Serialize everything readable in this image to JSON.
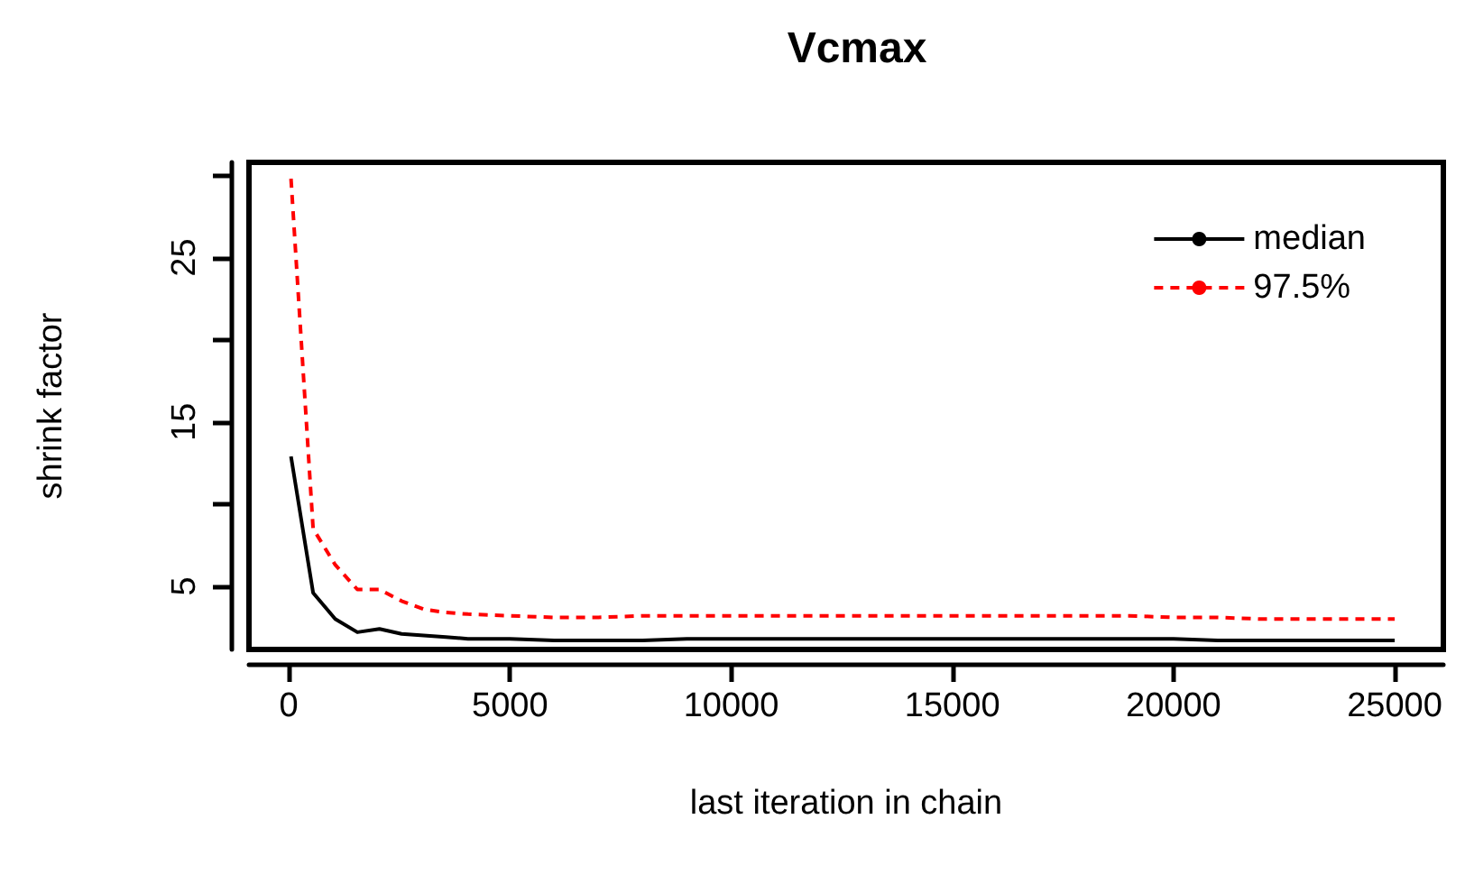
{
  "chart_data": {
    "type": "line",
    "title": "Vcmax",
    "xlabel": "last iteration in chain",
    "ylabel": "shrink factor",
    "x": [
      50,
      550,
      1050,
      1550,
      2050,
      2550,
      3050,
      3550,
      4050,
      5000,
      6000,
      7000,
      8000,
      9000,
      10000,
      11000,
      12000,
      13000,
      14000,
      15000,
      16000,
      17000,
      18000,
      19000,
      20000,
      21000,
      22000,
      23000,
      24000,
      25000
    ],
    "series": [
      {
        "name": "median",
        "color": "#000000",
        "line_style": "solid",
        "values": [
          12.9,
          4.6,
          3.0,
          2.2,
          2.4,
          2.1,
          2.0,
          1.9,
          1.8,
          1.8,
          1.7,
          1.7,
          1.7,
          1.8,
          1.8,
          1.8,
          1.8,
          1.8,
          1.8,
          1.8,
          1.8,
          1.8,
          1.8,
          1.8,
          1.8,
          1.7,
          1.7,
          1.7,
          1.7,
          1.7
        ]
      },
      {
        "name": "97.5%",
        "color": "#ff0000",
        "line_style": "dashed",
        "values": [
          29.8,
          8.5,
          6.3,
          4.8,
          4.8,
          4.1,
          3.6,
          3.4,
          3.3,
          3.2,
          3.1,
          3.1,
          3.2,
          3.2,
          3.2,
          3.2,
          3.2,
          3.2,
          3.2,
          3.2,
          3.2,
          3.2,
          3.2,
          3.2,
          3.1,
          3.1,
          3.0,
          3.0,
          3.0,
          3.0
        ]
      }
    ],
    "xlim": [
      -900,
      26100
    ],
    "ylim": [
      1.15,
      30.8
    ],
    "xticks": [
      0,
      5000,
      10000,
      15000,
      20000,
      25000
    ],
    "yticks": [
      5,
      {
        "value": 10,
        "label": null
      },
      15,
      {
        "value": 20,
        "label": null
      },
      25,
      {
        "value": 30,
        "label": null
      }
    ],
    "grid": false,
    "legend": "top right",
    "marker": "none"
  }
}
